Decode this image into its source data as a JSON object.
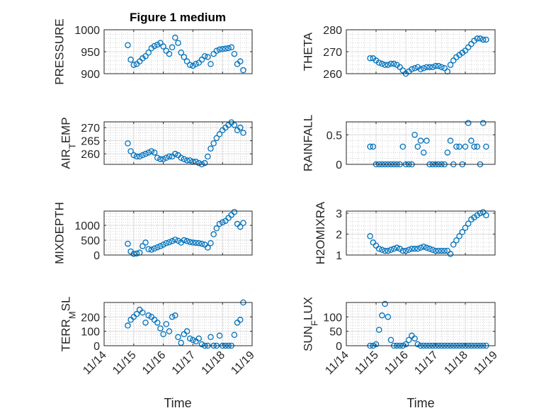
{
  "figure": {
    "title": "Figure 1 medium",
    "xlabel": "Time"
  },
  "chart_data": {
    "type": "scatter",
    "marker": "circle",
    "color": "#0072BD",
    "grid": "on (major + minor)",
    "x_unit": "day of November",
    "xlim": [
      14,
      19
    ],
    "xticks": [
      14,
      15,
      16,
      17,
      18,
      19
    ],
    "xtick_labels": [
      "11/14",
      "11/15",
      "11/16",
      "11/17",
      "11/18",
      "11/19"
    ],
    "x": [
      14.8,
      14.9,
      15.0,
      15.1,
      15.2,
      15.3,
      15.4,
      15.5,
      15.6,
      15.7,
      15.8,
      15.9,
      16.0,
      16.1,
      16.2,
      16.3,
      16.4,
      16.5,
      16.6,
      16.7,
      16.8,
      16.9,
      17.0,
      17.1,
      17.2,
      17.3,
      17.4,
      17.5,
      17.6,
      17.7,
      17.8,
      17.9,
      18.0,
      18.1,
      18.2,
      18.3,
      18.4,
      18.5,
      18.6,
      18.7
    ],
    "subplots": [
      {
        "ylabel": {
          "main": "PRESSURE",
          "sub": "",
          "rest": ""
        },
        "ylim": [
          900,
          1000
        ],
        "yticks": [
          900,
          950,
          1000
        ],
        "ytick_labels": [
          "900",
          "950",
          "1000"
        ],
        "yminor": 10,
        "values": [
          965,
          932,
          920,
          922,
          928,
          935,
          940,
          948,
          958,
          963,
          966,
          970,
          962,
          952,
          945,
          960,
          982,
          970,
          948,
          938,
          928,
          920,
          918,
          922,
          925,
          932,
          940,
          938,
          922,
          945,
          952,
          955,
          956,
          957,
          958,
          960,
          945,
          922,
          928,
          908
        ]
      },
      {
        "ylabel": {
          "main": "THETA",
          "sub": "",
          "rest": ""
        },
        "ylim": [
          260,
          280
        ],
        "yticks": [
          260,
          270,
          280
        ],
        "ytick_labels": [
          "260",
          "270",
          "280"
        ],
        "yminor": 2,
        "values": [
          267,
          267,
          266,
          265,
          264.5,
          264,
          264,
          264.5,
          264.5,
          264,
          263,
          261.5,
          260,
          261,
          262,
          262.5,
          263,
          262,
          262.5,
          263,
          263,
          263,
          263.5,
          263.5,
          263,
          262.5,
          261,
          264,
          266,
          267.5,
          268.5,
          269.5,
          270.5,
          272,
          273.5,
          275,
          276,
          276,
          275.5,
          275.5
        ]
      },
      {
        "ylabel": {
          "main": "AIR",
          "sub": "T",
          "rest": "EMP"
        },
        "ylim": [
          256,
          272.2
        ],
        "yticks": [
          260,
          265,
          270
        ],
        "ytick_labels": [
          "260",
          "265",
          "270"
        ],
        "yminor": 1,
        "values": [
          264,
          261,
          259.5,
          259,
          259,
          259.5,
          260,
          260.5,
          261,
          260.5,
          258.5,
          258,
          258,
          258.5,
          259,
          259,
          260,
          259.5,
          258.5,
          258,
          257.5,
          257.5,
          257,
          257,
          256.5,
          256,
          256.5,
          259,
          262,
          264,
          266,
          267.5,
          269,
          270,
          271,
          272,
          271,
          269,
          270,
          268
        ]
      },
      {
        "ylabel": {
          "main": "RAINFALL",
          "sub": "",
          "rest": ""
        },
        "ylim": [
          0,
          0.72
        ],
        "yticks": [
          0,
          0.5
        ],
        "ytick_labels": [
          "0",
          "0.5"
        ],
        "yminor": 0.1,
        "values": [
          0.3,
          0.3,
          0,
          0,
          0,
          0,
          0,
          0,
          0,
          0,
          0,
          0.3,
          0,
          0,
          0,
          0.5,
          0.3,
          0.4,
          0.2,
          0.4,
          0,
          0,
          0,
          0,
          0,
          0,
          0.2,
          0.4,
          0,
          0.3,
          0.3,
          0,
          0.3,
          0.7,
          0.4,
          0.3,
          0.3,
          0,
          0.7,
          0.3
        ]
      },
      {
        "ylabel": {
          "main": "MIXDEPTH",
          "sub": "",
          "rest": ""
        },
        "ylim": [
          0,
          1480
        ],
        "yticks": [
          0,
          500,
          1000
        ],
        "ytick_labels": [
          "0",
          "500",
          "1000"
        ],
        "yminor": 100,
        "values": [
          380,
          120,
          40,
          50,
          80,
          300,
          420,
          200,
          180,
          220,
          260,
          300,
          350,
          400,
          430,
          470,
          520,
          480,
          420,
          500,
          470,
          440,
          420,
          410,
          400,
          380,
          350,
          250,
          400,
          700,
          900,
          1050,
          1100,
          1150,
          1250,
          1350,
          1450,
          1050,
          950,
          1080
        ]
      },
      {
        "ylabel": {
          "main": "H2OMIXRA",
          "sub": "",
          "rest": ""
        },
        "ylim": [
          1,
          3.1
        ],
        "yticks": [
          1,
          2,
          3
        ],
        "ytick_labels": [
          "1",
          "2",
          "3"
        ],
        "yminor": 0.2,
        "values": [
          1.9,
          1.6,
          1.45,
          1.3,
          1.25,
          1.2,
          1.2,
          1.25,
          1.3,
          1.35,
          1.3,
          1.2,
          1.2,
          1.25,
          1.3,
          1.3,
          1.3,
          1.35,
          1.4,
          1.35,
          1.3,
          1.25,
          1.2,
          1.2,
          1.2,
          1.2,
          1.2,
          1.05,
          1.5,
          1.7,
          1.9,
          2.1,
          2.3,
          2.5,
          2.7,
          2.8,
          2.9,
          3.0,
          3.05,
          2.9
        ]
      },
      {
        "ylabel": {
          "main": "TERR",
          "sub": "M",
          "rest": "SL"
        },
        "ylim": [
          0,
          300
        ],
        "yticks": [
          0,
          100,
          200
        ],
        "ytick_labels": [
          "0",
          "100",
          "200"
        ],
        "yminor": 20,
        "values": [
          140,
          180,
          200,
          220,
          250,
          230,
          160,
          210,
          200,
          180,
          160,
          120,
          80,
          150,
          100,
          200,
          210,
          60,
          20,
          80,
          100,
          50,
          40,
          30,
          50,
          10,
          0,
          0,
          60,
          0,
          0,
          70,
          0,
          0,
          0,
          0,
          75,
          160,
          180,
          300
        ]
      },
      {
        "ylabel": {
          "main": "SUN",
          "sub": "F",
          "rest": "LUX"
        },
        "ylim": [
          0,
          150
        ],
        "yticks": [
          0,
          50,
          100
        ],
        "ytick_labels": [
          "0",
          "50",
          "100"
        ],
        "yminor": 10,
        "values": [
          0,
          0,
          5,
          55,
          105,
          145,
          100,
          20,
          0,
          0,
          0,
          0,
          5,
          20,
          35,
          25,
          5,
          0,
          0,
          0,
          0,
          0,
          0,
          0,
          0,
          0,
          0,
          0,
          0,
          0,
          0,
          0,
          0,
          0,
          0,
          0,
          0,
          0,
          0,
          0
        ]
      }
    ]
  }
}
